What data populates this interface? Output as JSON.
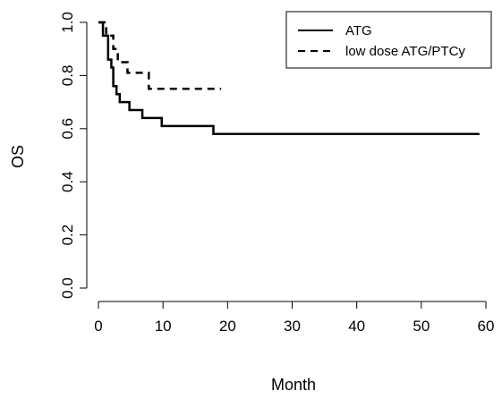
{
  "chart_data": {
    "type": "line",
    "title": "",
    "xlabel": "Month",
    "ylabel": "OS",
    "xlim": [
      0,
      60
    ],
    "ylim": [
      0,
      1
    ],
    "x_ticks": [
      "0",
      "10",
      "20",
      "30",
      "40",
      "50",
      "60"
    ],
    "y_ticks": [
      "0.0",
      "0.2",
      "0.4",
      "0.6",
      "0.8",
      "1.0"
    ],
    "grid": false,
    "legend_position": "top-right",
    "series": [
      {
        "name": "ATG",
        "line_style": "solid",
        "color": "#000000",
        "step_points": [
          [
            0,
            1.0
          ],
          [
            0.7,
            1.0
          ],
          [
            0.7,
            0.95
          ],
          [
            1.5,
            0.95
          ],
          [
            1.5,
            0.86
          ],
          [
            2.0,
            0.86
          ],
          [
            2.0,
            0.83
          ],
          [
            2.3,
            0.83
          ],
          [
            2.3,
            0.76
          ],
          [
            2.8,
            0.76
          ],
          [
            2.8,
            0.73
          ],
          [
            3.3,
            0.73
          ],
          [
            3.3,
            0.7
          ],
          [
            4.8,
            0.7
          ],
          [
            4.8,
            0.67
          ],
          [
            6.8,
            0.67
          ],
          [
            6.8,
            0.64
          ],
          [
            9.8,
            0.64
          ],
          [
            9.8,
            0.61
          ],
          [
            17.8,
            0.61
          ],
          [
            17.8,
            0.58
          ],
          [
            59,
            0.58
          ]
        ]
      },
      {
        "name": "low dose ATG/PTCy",
        "line_style": "dashed",
        "color": "#000000",
        "step_points": [
          [
            0,
            1.0
          ],
          [
            1.2,
            1.0
          ],
          [
            1.2,
            0.95
          ],
          [
            2.3,
            0.95
          ],
          [
            2.3,
            0.9
          ],
          [
            3.0,
            0.9
          ],
          [
            3.0,
            0.85
          ],
          [
            4.5,
            0.85
          ],
          [
            4.5,
            0.81
          ],
          [
            7.8,
            0.81
          ],
          [
            7.8,
            0.75
          ],
          [
            19,
            0.75
          ]
        ]
      }
    ]
  }
}
